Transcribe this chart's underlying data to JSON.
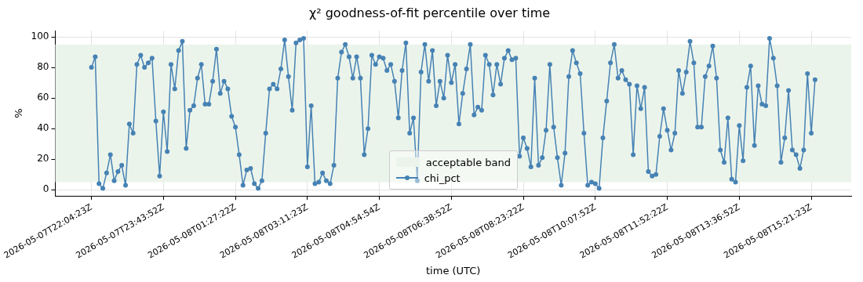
{
  "chart_data": {
    "type": "line",
    "title": "χ² goodness-of-fit percentile over time",
    "xlabel": "time (UTC)",
    "ylabel": "%",
    "categories": [
      "2026-05-07T22:04:23Z",
      null,
      null,
      null,
      null,
      null,
      null,
      null,
      null,
      null,
      null,
      null,
      null,
      null,
      null,
      null,
      null,
      null,
      null,
      "2026-05-07T23:43:52Z",
      null,
      null,
      null,
      null,
      null,
      null,
      null,
      null,
      null,
      null,
      null,
      null,
      null,
      null,
      null,
      null,
      null,
      null,
      "2026-05-08T01:27:22Z",
      null,
      null,
      null,
      null,
      null,
      null,
      null,
      null,
      null,
      null,
      null,
      null,
      null,
      null,
      null,
      null,
      null,
      null,
      "2026-05-08T03:11:23Z",
      null,
      null,
      null,
      null,
      null,
      null,
      null,
      null,
      null,
      null,
      null,
      null,
      null,
      null,
      null,
      null,
      null,
      null,
      "2026-05-08T04:54:54Z",
      null,
      null,
      null,
      null,
      null,
      null,
      null,
      null,
      null,
      null,
      null,
      null,
      null,
      null,
      null,
      null,
      null,
      null,
      "2026-05-08T06:38:52Z",
      null,
      null,
      null,
      null,
      null,
      null,
      null,
      null,
      null,
      null,
      null,
      null,
      null,
      null,
      null,
      null,
      null,
      null,
      "2026-05-08T08:23:22Z",
      null,
      null,
      null,
      null,
      null,
      null,
      null,
      null,
      null,
      null,
      null,
      null,
      null,
      null,
      null,
      null,
      null,
      null,
      "2026-05-08T10:07:52Z",
      null,
      null,
      null,
      null,
      null,
      null,
      null,
      null,
      null,
      null,
      null,
      null,
      null,
      null,
      null,
      null,
      null,
      null,
      "2026-05-08T11:52:22Z",
      null,
      null,
      null,
      null,
      null,
      null,
      null,
      null,
      null,
      null,
      null,
      null,
      null,
      null,
      null,
      null,
      null,
      null,
      "2026-05-08T13:36:52Z",
      null,
      null,
      null,
      null,
      null,
      null,
      null,
      null,
      null,
      null,
      null,
      null,
      null,
      null,
      null,
      null,
      null,
      null,
      "2026-05-08T15:21:23Z",
      null
    ],
    "series": [
      {
        "name": "chi_pct",
        "color": "#4682b4",
        "values": [
          80,
          87,
          4,
          1,
          11,
          23,
          6,
          12,
          16,
          3,
          43,
          37,
          82,
          88,
          80,
          83,
          86,
          45,
          9,
          51,
          25,
          82,
          66,
          91,
          97,
          27,
          52,
          55,
          73,
          82,
          56,
          56,
          71,
          92,
          63,
          71,
          66,
          48,
          41,
          23,
          3,
          13,
          14,
          4,
          1,
          6,
          37,
          66,
          69,
          66,
          79,
          98,
          74,
          52,
          96,
          98,
          99,
          15,
          55,
          4,
          5,
          11,
          6,
          4,
          16,
          73,
          90,
          95,
          87,
          73,
          87,
          73,
          23,
          40,
          88,
          82,
          87,
          86,
          78,
          82,
          71,
          47,
          78,
          96,
          37,
          47,
          6,
          77,
          95,
          71,
          91,
          55,
          71,
          60,
          88,
          70,
          82,
          43,
          63,
          79,
          95,
          49,
          54,
          52,
          88,
          82,
          62,
          82,
          69,
          86,
          91,
          85,
          86,
          22,
          34,
          27,
          15,
          73,
          16,
          21,
          39,
          82,
          41,
          21,
          3,
          24,
          74,
          91,
          83,
          76,
          37,
          3,
          5,
          4,
          1,
          34,
          58,
          83,
          95,
          73,
          78,
          72,
          69,
          23,
          68,
          53,
          67,
          12,
          9,
          10,
          35,
          53,
          39,
          26,
          37,
          78,
          63,
          77,
          97,
          83,
          41,
          41,
          74,
          81,
          94,
          73,
          26,
          18,
          47,
          7,
          5,
          42,
          19,
          67,
          81,
          29,
          68,
          56,
          55,
          99,
          86,
          68,
          18,
          34,
          65,
          26,
          23,
          14,
          26,
          76,
          37,
          72
        ]
      }
    ],
    "bands": [
      {
        "axis": "y",
        "from": 5,
        "to": 95,
        "label": "acceptable band",
        "color": "#ebf4eb"
      }
    ],
    "ylim": [
      -4,
      104
    ],
    "yticks": [
      0,
      20,
      40,
      60,
      80,
      100
    ],
    "grid": true,
    "legend": "bottom",
    "marker": "circle",
    "line_style": "solid"
  }
}
